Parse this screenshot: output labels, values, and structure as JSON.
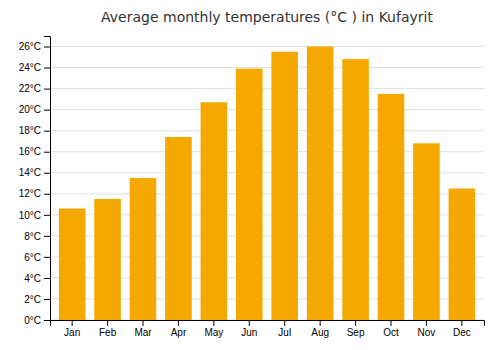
{
  "chart_data": {
    "type": "bar",
    "title": "Average monthly temperatures (°C ) in Kufayrit",
    "categories": [
      "Jan",
      "Feb",
      "Mar",
      "Apr",
      "May",
      "Jun",
      "Jul",
      "Aug",
      "Sep",
      "Oct",
      "Nov",
      "Dec"
    ],
    "values": [
      10.6,
      11.5,
      13.5,
      17.4,
      20.7,
      23.9,
      25.5,
      26.0,
      24.8,
      21.5,
      16.8,
      12.5
    ],
    "color": "#F5A800",
    "ylim": [
      0,
      27
    ],
    "yticks": [
      {
        "value": 0,
        "label": "0°C"
      },
      {
        "value": 2,
        "label": "2°C"
      },
      {
        "value": 4,
        "label": "4°C"
      },
      {
        "value": 6,
        "label": "6°C"
      },
      {
        "value": 8,
        "label": "8°C"
      },
      {
        "value": 10,
        "label": "10°C"
      },
      {
        "value": 12,
        "label": "12°C"
      },
      {
        "value": 14,
        "label": "14°C"
      },
      {
        "value": 16,
        "label": "16°C"
      },
      {
        "value": 18,
        "label": "18°C"
      },
      {
        "value": 20,
        "label": "20°C"
      },
      {
        "value": 22,
        "label": "22°C"
      },
      {
        "value": 24,
        "label": "24°C"
      },
      {
        "value": 26,
        "label": "26°C"
      }
    ],
    "grid": true
  }
}
